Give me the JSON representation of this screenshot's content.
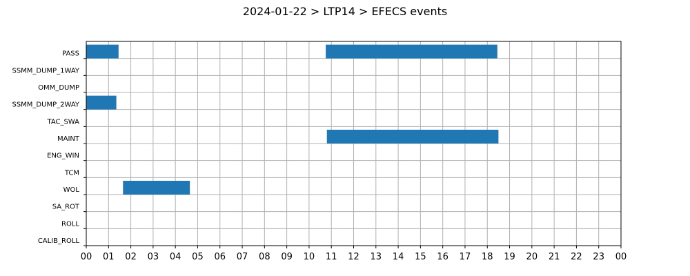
{
  "chart_data": {
    "type": "bar",
    "orientation": "horizontal-timeline",
    "title": "2024-01-22 > LTP14 > EFECS events",
    "xlabel": "",
    "ylabel": "",
    "x_unit": "hour",
    "xlim": [
      0,
      24
    ],
    "x_tick_labels": [
      "00",
      "01",
      "02",
      "03",
      "04",
      "05",
      "06",
      "07",
      "08",
      "09",
      "10",
      "11",
      "12",
      "13",
      "14",
      "15",
      "16",
      "17",
      "18",
      "19",
      "20",
      "21",
      "22",
      "23",
      "00"
    ],
    "categories": [
      "PASS",
      "SSMM_DUMP_1WAY",
      "OMM_DUMP",
      "SSMM_DUMP_2WAY",
      "TAC_SWA",
      "MAINT",
      "ENG_WIN",
      "TCM",
      "WOL",
      "SA_ROT",
      "ROLL",
      "CALIB_ROLL"
    ],
    "events": [
      {
        "category": "PASS",
        "start": 0.0,
        "end": 1.45
      },
      {
        "category": "PASS",
        "start": 10.75,
        "end": 18.45
      },
      {
        "category": "SSMM_DUMP_2WAY",
        "start": 0.0,
        "end": 1.35
      },
      {
        "category": "MAINT",
        "start": 10.8,
        "end": 18.5
      },
      {
        "category": "WOL",
        "start": 1.65,
        "end": 4.65
      }
    ],
    "bar_color": "#1f77b4",
    "grid": true,
    "legend": "none"
  }
}
